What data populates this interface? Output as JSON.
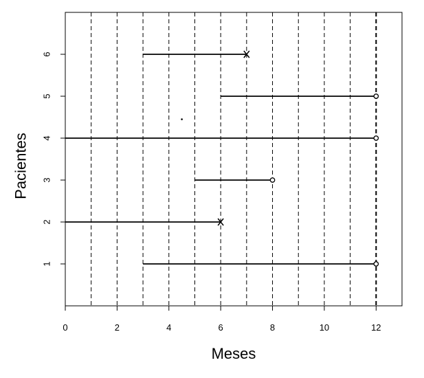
{
  "chart_data": {
    "type": "timeline",
    "xlabel": "Meses",
    "ylabel": "Pacientes",
    "xlim": [
      0,
      13
    ],
    "ylim": [
      0,
      7
    ],
    "x_ticks": [
      0,
      2,
      4,
      6,
      8,
      10,
      12
    ],
    "y_ticks": [
      1,
      2,
      3,
      4,
      5,
      6
    ],
    "vertical_reference_lines": [
      1,
      2,
      3,
      4,
      5,
      6,
      7,
      8,
      9,
      10,
      11
    ],
    "study_end_line": 12,
    "grid": false,
    "patients": [
      {
        "id": 1,
        "start": 3,
        "end": 12,
        "event": "censored",
        "marker": "o"
      },
      {
        "id": 2,
        "start": 0,
        "end": 6,
        "event": "death",
        "marker": "X"
      },
      {
        "id": 3,
        "start": 5,
        "end": 8,
        "event": "censored",
        "marker": "o"
      },
      {
        "id": 4,
        "start": 0,
        "end": 12,
        "event": "censored",
        "marker": "o"
      },
      {
        "id": 5,
        "start": 6,
        "end": 12,
        "event": "censored",
        "marker": "o"
      },
      {
        "id": 6,
        "start": 3,
        "end": 7,
        "event": "death",
        "marker": "X"
      }
    ],
    "stray_dot": {
      "x": 4.5,
      "y": 4.45
    },
    "colors": {
      "line": "#000000",
      "background": "#ffffff"
    }
  }
}
